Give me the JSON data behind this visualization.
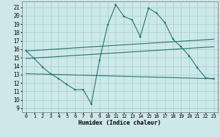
{
  "xlabel": "Humidex (Indice chaleur)",
  "bg_color": "#cde8e8",
  "grid_color": "#aacfcf",
  "line_color": "#1a6e6e",
  "xlim": [
    -0.5,
    23.5
  ],
  "ylim": [
    8.5,
    21.7
  ],
  "yticks": [
    9,
    10,
    11,
    12,
    13,
    14,
    15,
    16,
    17,
    18,
    19,
    20,
    21
  ],
  "xticks": [
    0,
    1,
    2,
    3,
    4,
    5,
    6,
    7,
    8,
    9,
    10,
    11,
    12,
    13,
    14,
    15,
    16,
    17,
    18,
    19,
    20,
    21,
    22,
    23
  ],
  "line1_x": [
    0,
    1,
    2,
    3,
    4,
    5,
    6,
    7,
    8,
    9,
    10,
    11,
    12,
    13,
    14,
    15,
    16,
    17,
    18,
    19,
    20,
    21,
    22,
    23
  ],
  "line1_y": [
    15.8,
    14.9,
    13.9,
    13.1,
    12.5,
    11.8,
    11.2,
    11.2,
    9.5,
    14.7,
    18.9,
    21.3,
    19.9,
    19.5,
    17.5,
    20.9,
    20.3,
    19.2,
    17.2,
    16.3,
    15.2,
    13.8,
    12.6,
    12.5
  ],
  "line2_x": [
    0,
    23
  ],
  "line2_y": [
    15.8,
    17.2
  ],
  "line3_x": [
    0,
    23
  ],
  "line3_y": [
    14.9,
    16.3
  ],
  "line4_x": [
    0,
    23
  ],
  "line4_y": [
    13.1,
    12.5
  ]
}
